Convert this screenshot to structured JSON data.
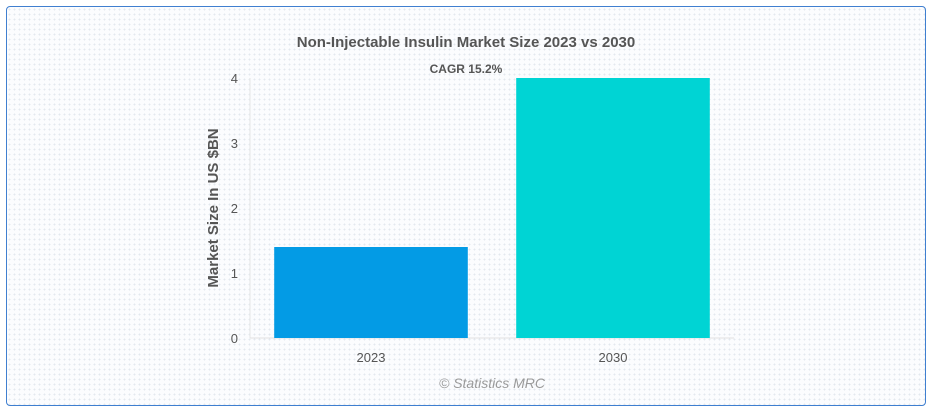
{
  "chart_data": {
    "type": "bar",
    "title": "Non-Injectable Insulin Market Size 2023 vs 2030",
    "categories": [
      "2023",
      "2030"
    ],
    "values": [
      1.4,
      4.0
    ],
    "colors": [
      "#039be5",
      "#00d4d4"
    ],
    "xlabel": "",
    "ylabel": "Market Size In US $BN",
    "ylim": [
      0,
      4
    ],
    "yticks": [
      "0",
      "1",
      "2",
      "3",
      "4"
    ],
    "annotation": "CAGR 15.2%",
    "credit": "© Statistics MRC",
    "grid": false,
    "legend": "none"
  }
}
